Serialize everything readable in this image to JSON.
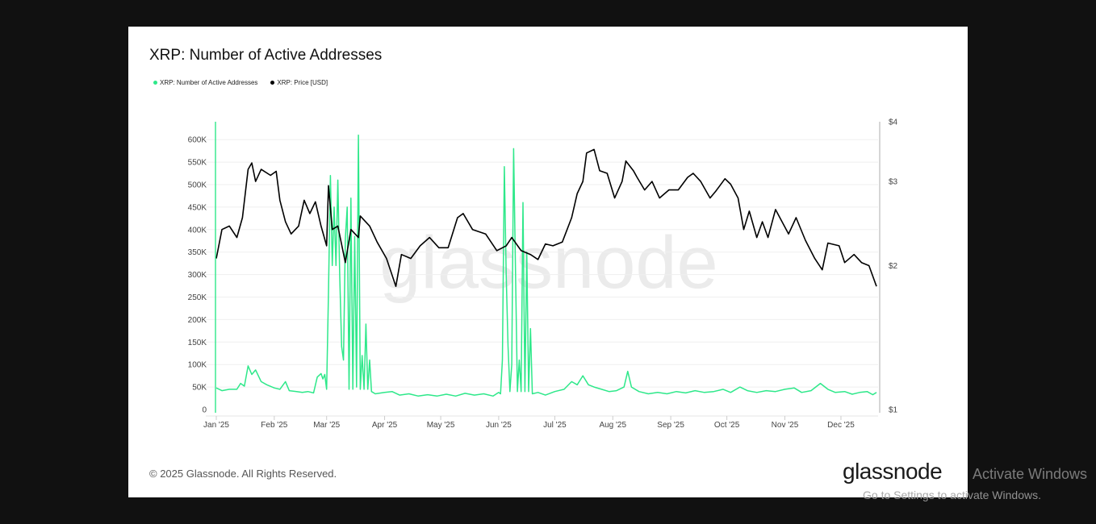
{
  "title": "XRP: Number of Active Addresses",
  "legend": [
    {
      "label": "XRP: Number of Active Addresses",
      "color": "#2ee88a"
    },
    {
      "label": "XRP: Price [USD]",
      "color": "#000000"
    }
  ],
  "footer": {
    "copyright": "© 2025 Glassnode. All Rights Reserved.",
    "logo": "glassnode",
    "watermark": "glassnode"
  },
  "os_overlay": {
    "line1": "Activate Windows",
    "line2": "Go to Settings to activate Windows."
  },
  "chart_data": {
    "type": "line",
    "title": "XRP: Number of Active Addresses",
    "x_ticks": [
      "Jan '25",
      "Feb '25",
      "Mar '25",
      "Apr '25",
      "May '25",
      "Jun '25",
      "Jul '25",
      "Aug '25",
      "Sep '25",
      "Oct '25",
      "Nov '25",
      "Dec '25"
    ],
    "y_left": {
      "ticks": [
        "0",
        "50K",
        "100K",
        "150K",
        "200K",
        "250K",
        "300K",
        "350K",
        "400K",
        "450K",
        "500K",
        "550K",
        "600K"
      ],
      "range": [
        0,
        640000
      ],
      "scale": "linear"
    },
    "y_right": {
      "ticks": [
        "$1",
        "$2",
        "$3",
        "$4"
      ],
      "range": [
        1,
        4
      ],
      "scale": "log"
    },
    "grid": true,
    "legend_placement": "top-left",
    "series": [
      {
        "name": "XRP: Number of Active Addresses",
        "axis": "left",
        "color": "#2ee88a",
        "unit": "thousands",
        "points": [
          [
            "2025-01-01",
            48
          ],
          [
            "2025-01-04",
            42
          ],
          [
            "2025-01-08",
            45
          ],
          [
            "2025-01-12",
            45
          ],
          [
            "2025-01-14",
            58
          ],
          [
            "2025-01-16",
            52
          ],
          [
            "2025-01-18",
            97
          ],
          [
            "2025-01-20",
            78
          ],
          [
            "2025-01-22",
            88
          ],
          [
            "2025-01-25",
            62
          ],
          [
            "2025-01-28",
            55
          ],
          [
            "2025-02-01",
            48
          ],
          [
            "2025-02-04",
            45
          ],
          [
            "2025-02-07",
            62
          ],
          [
            "2025-02-09",
            42
          ],
          [
            "2025-02-13",
            40
          ],
          [
            "2025-02-16",
            38
          ],
          [
            "2025-02-19",
            40
          ],
          [
            "2025-02-22",
            37
          ],
          [
            "2025-02-24",
            72
          ],
          [
            "2025-02-26",
            80
          ],
          [
            "2025-02-27",
            68
          ],
          [
            "2025-02-28",
            78
          ],
          [
            "2025-03-01",
            45
          ],
          [
            "2025-03-02",
            260
          ],
          [
            "2025-03-03",
            520
          ],
          [
            "2025-03-04",
            320
          ],
          [
            "2025-03-05",
            450
          ],
          [
            "2025-03-06",
            320
          ],
          [
            "2025-03-07",
            510
          ],
          [
            "2025-03-08",
            300
          ],
          [
            "2025-03-09",
            140
          ],
          [
            "2025-03-10",
            110
          ],
          [
            "2025-03-11",
            380
          ],
          [
            "2025-03-12",
            450
          ],
          [
            "2025-03-13",
            45
          ],
          [
            "2025-03-14",
            470
          ],
          [
            "2025-03-15",
            45
          ],
          [
            "2025-03-16",
            385
          ],
          [
            "2025-03-17",
            50
          ],
          [
            "2025-03-18",
            610
          ],
          [
            "2025-03-19",
            45
          ],
          [
            "2025-03-20",
            120
          ],
          [
            "2025-03-21",
            45
          ],
          [
            "2025-03-22",
            190
          ],
          [
            "2025-03-23",
            45
          ],
          [
            "2025-03-24",
            110
          ],
          [
            "2025-03-25",
            40
          ],
          [
            "2025-03-27",
            35
          ],
          [
            "2025-04-01",
            38
          ],
          [
            "2025-04-05",
            40
          ],
          [
            "2025-04-09",
            32
          ],
          [
            "2025-04-14",
            35
          ],
          [
            "2025-04-19",
            30
          ],
          [
            "2025-04-24",
            33
          ],
          [
            "2025-04-29",
            30
          ],
          [
            "2025-05-04",
            34
          ],
          [
            "2025-05-09",
            30
          ],
          [
            "2025-05-14",
            36
          ],
          [
            "2025-05-19",
            32
          ],
          [
            "2025-05-24",
            35
          ],
          [
            "2025-05-29",
            30
          ],
          [
            "2025-06-01",
            38
          ],
          [
            "2025-06-02",
            35
          ],
          [
            "2025-06-03",
            110
          ],
          [
            "2025-06-04",
            540
          ],
          [
            "2025-06-05",
            300
          ],
          [
            "2025-06-06",
            140
          ],
          [
            "2025-06-07",
            40
          ],
          [
            "2025-06-08",
            100
          ],
          [
            "2025-06-09",
            580
          ],
          [
            "2025-06-10",
            300
          ],
          [
            "2025-06-11",
            40
          ],
          [
            "2025-06-12",
            110
          ],
          [
            "2025-06-13",
            40
          ],
          [
            "2025-06-14",
            460
          ],
          [
            "2025-06-15",
            40
          ],
          [
            "2025-06-16",
            350
          ],
          [
            "2025-06-17",
            40
          ],
          [
            "2025-06-18",
            180
          ],
          [
            "2025-06-19",
            35
          ],
          [
            "2025-06-22",
            38
          ],
          [
            "2025-06-26",
            32
          ],
          [
            "2025-07-01",
            40
          ],
          [
            "2025-07-06",
            45
          ],
          [
            "2025-07-10",
            62
          ],
          [
            "2025-07-13",
            55
          ],
          [
            "2025-07-16",
            75
          ],
          [
            "2025-07-19",
            55
          ],
          [
            "2025-07-22",
            50
          ],
          [
            "2025-07-26",
            45
          ],
          [
            "2025-07-30",
            40
          ],
          [
            "2025-08-03",
            42
          ],
          [
            "2025-08-07",
            50
          ],
          [
            "2025-08-09",
            85
          ],
          [
            "2025-08-11",
            50
          ],
          [
            "2025-08-15",
            40
          ],
          [
            "2025-08-20",
            35
          ],
          [
            "2025-08-25",
            38
          ],
          [
            "2025-08-30",
            35
          ],
          [
            "2025-09-04",
            40
          ],
          [
            "2025-09-09",
            37
          ],
          [
            "2025-09-14",
            42
          ],
          [
            "2025-09-19",
            38
          ],
          [
            "2025-09-24",
            40
          ],
          [
            "2025-09-29",
            45
          ],
          [
            "2025-10-03",
            38
          ],
          [
            "2025-10-08",
            50
          ],
          [
            "2025-10-12",
            42
          ],
          [
            "2025-10-17",
            38
          ],
          [
            "2025-10-22",
            42
          ],
          [
            "2025-10-27",
            40
          ],
          [
            "2025-11-01",
            45
          ],
          [
            "2025-11-06",
            48
          ],
          [
            "2025-11-10",
            38
          ],
          [
            "2025-11-15",
            42
          ],
          [
            "2025-11-20",
            58
          ],
          [
            "2025-11-24",
            45
          ],
          [
            "2025-11-28",
            38
          ],
          [
            "2025-12-03",
            40
          ],
          [
            "2025-12-07",
            34
          ],
          [
            "2025-12-11",
            38
          ],
          [
            "2025-12-15",
            40
          ],
          [
            "2025-12-18",
            33
          ],
          [
            "2025-12-20",
            38
          ]
        ]
      },
      {
        "name": "XRP: Price [USD]",
        "axis": "right",
        "color": "#000000",
        "unit": "USD",
        "points": [
          [
            "2025-01-01",
            2.07
          ],
          [
            "2025-01-04",
            2.38
          ],
          [
            "2025-01-08",
            2.42
          ],
          [
            "2025-01-12",
            2.29
          ],
          [
            "2025-01-15",
            2.52
          ],
          [
            "2025-01-18",
            3.18
          ],
          [
            "2025-01-20",
            3.28
          ],
          [
            "2025-01-22",
            3.0
          ],
          [
            "2025-01-25",
            3.18
          ],
          [
            "2025-01-30",
            3.09
          ],
          [
            "2025-02-02",
            3.15
          ],
          [
            "2025-02-04",
            2.74
          ],
          [
            "2025-02-07",
            2.47
          ],
          [
            "2025-02-10",
            2.33
          ],
          [
            "2025-02-14",
            2.42
          ],
          [
            "2025-02-17",
            2.74
          ],
          [
            "2025-02-20",
            2.57
          ],
          [
            "2025-02-23",
            2.72
          ],
          [
            "2025-02-26",
            2.42
          ],
          [
            "2025-03-01",
            2.2
          ],
          [
            "2025-03-02",
            2.94
          ],
          [
            "2025-03-04",
            2.38
          ],
          [
            "2025-03-07",
            2.42
          ],
          [
            "2025-03-11",
            2.03
          ],
          [
            "2025-03-14",
            2.38
          ],
          [
            "2025-03-18",
            2.29
          ],
          [
            "2025-03-19",
            2.54
          ],
          [
            "2025-03-24",
            2.42
          ],
          [
            "2025-03-28",
            2.24
          ],
          [
            "2025-04-02",
            2.07
          ],
          [
            "2025-04-07",
            1.81
          ],
          [
            "2025-04-10",
            2.11
          ],
          [
            "2025-04-15",
            2.07
          ],
          [
            "2025-04-20",
            2.2
          ],
          [
            "2025-04-25",
            2.29
          ],
          [
            "2025-04-30",
            2.18
          ],
          [
            "2025-05-05",
            2.18
          ],
          [
            "2025-05-10",
            2.52
          ],
          [
            "2025-05-13",
            2.57
          ],
          [
            "2025-05-18",
            2.38
          ],
          [
            "2025-05-25",
            2.33
          ],
          [
            "2025-05-31",
            2.15
          ],
          [
            "2025-06-05",
            2.2
          ],
          [
            "2025-06-08",
            2.29
          ],
          [
            "2025-06-13",
            2.15
          ],
          [
            "2025-06-18",
            2.11
          ],
          [
            "2025-06-22",
            2.06
          ],
          [
            "2025-06-26",
            2.22
          ],
          [
            "2025-06-30",
            2.2
          ],
          [
            "2025-07-05",
            2.24
          ],
          [
            "2025-07-10",
            2.52
          ],
          [
            "2025-07-13",
            2.83
          ],
          [
            "2025-07-16",
            3.0
          ],
          [
            "2025-07-18",
            3.44
          ],
          [
            "2025-07-22",
            3.5
          ],
          [
            "2025-07-25",
            3.16
          ],
          [
            "2025-07-29",
            3.12
          ],
          [
            "2025-08-02",
            2.77
          ],
          [
            "2025-08-06",
            3.0
          ],
          [
            "2025-08-08",
            3.31
          ],
          [
            "2025-08-12",
            3.16
          ],
          [
            "2025-08-14",
            3.06
          ],
          [
            "2025-08-18",
            2.88
          ],
          [
            "2025-08-22",
            3.0
          ],
          [
            "2025-08-26",
            2.77
          ],
          [
            "2025-08-31",
            2.88
          ],
          [
            "2025-09-05",
            2.88
          ],
          [
            "2025-09-10",
            3.06
          ],
          [
            "2025-09-13",
            3.12
          ],
          [
            "2025-09-17",
            3.0
          ],
          [
            "2025-09-22",
            2.77
          ],
          [
            "2025-09-25",
            2.86
          ],
          [
            "2025-09-30",
            3.04
          ],
          [
            "2025-10-03",
            2.96
          ],
          [
            "2025-10-07",
            2.77
          ],
          [
            "2025-10-10",
            2.38
          ],
          [
            "2025-10-13",
            2.6
          ],
          [
            "2025-10-17",
            2.29
          ],
          [
            "2025-10-20",
            2.47
          ],
          [
            "2025-10-23",
            2.29
          ],
          [
            "2025-10-27",
            2.62
          ],
          [
            "2025-11-03",
            2.33
          ],
          [
            "2025-11-07",
            2.52
          ],
          [
            "2025-11-12",
            2.26
          ],
          [
            "2025-11-17",
            2.07
          ],
          [
            "2025-11-21",
            1.96
          ],
          [
            "2025-11-24",
            2.23
          ],
          [
            "2025-11-30",
            2.2
          ],
          [
            "2025-12-03",
            2.03
          ],
          [
            "2025-12-08",
            2.11
          ],
          [
            "2025-12-12",
            2.03
          ],
          [
            "2025-12-16",
            2.0
          ],
          [
            "2025-12-20",
            1.81
          ]
        ]
      }
    ]
  }
}
